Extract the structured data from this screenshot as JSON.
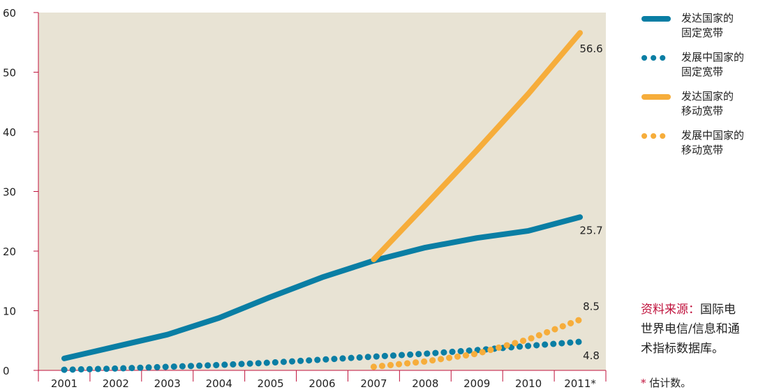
{
  "chart_data": {
    "type": "line",
    "categories": [
      "2001",
      "2002",
      "2003",
      "2004",
      "2005",
      "2006",
      "2007",
      "2008",
      "2009",
      "2010",
      "2011*"
    ],
    "ylim": [
      0,
      60
    ],
    "yticks": [
      "0",
      "10",
      "20",
      "30",
      "40",
      "50",
      "60"
    ],
    "series": [
      {
        "name": "发达国家的固定宽带",
        "color": "#0a7ea4",
        "style": "solid",
        "values": [
          2.0,
          4.0,
          6.0,
          8.8,
          12.3,
          15.6,
          18.4,
          20.6,
          22.2,
          23.4,
          25.7
        ],
        "end_label": "25.7"
      },
      {
        "name": "发展中国家的固定宽带",
        "color": "#0a7ea4",
        "style": "dotted",
        "values": [
          0.1,
          0.3,
          0.6,
          0.9,
          1.3,
          1.8,
          2.3,
          2.8,
          3.4,
          4.1,
          4.8
        ],
        "end_label": "4.8"
      },
      {
        "name": "发达国家的移动宽带",
        "color": "#f6ad3b",
        "style": "solid",
        "values": [
          null,
          null,
          null,
          null,
          null,
          null,
          18.6,
          27.7,
          36.9,
          46.4,
          56.6
        ],
        "end_label": "56.6"
      },
      {
        "name": "发展中国家的移动宽带",
        "color": "#f6ad3b",
        "style": "dotted",
        "values": [
          null,
          null,
          null,
          null,
          null,
          null,
          0.6,
          1.5,
          2.8,
          5.2,
          8.5
        ],
        "end_label": "8.5"
      }
    ],
    "background": "#e8e3d4",
    "axis_color": "#c0123c"
  },
  "legend": [
    {
      "line1": "发达国家的",
      "line2": "固定宽带",
      "color": "#0a7ea4",
      "style": "solid"
    },
    {
      "line1": "发展中国家的",
      "line2": "固定宽带",
      "color": "#0a7ea4",
      "style": "dotted"
    },
    {
      "line1": "发达国家的",
      "line2": "移动宽带",
      "color": "#f6ad3b",
      "style": "solid"
    },
    {
      "line1": "发展中国家的",
      "line2": "移动宽带",
      "color": "#f6ad3b",
      "style": "dotted"
    }
  ],
  "source": {
    "label": "资料来源：",
    "line1": "国际电",
    "line2": "世界电信/信息和通",
    "line3": "术指标数据库。"
  },
  "note": {
    "star": "*",
    "text": " 估计数。"
  }
}
